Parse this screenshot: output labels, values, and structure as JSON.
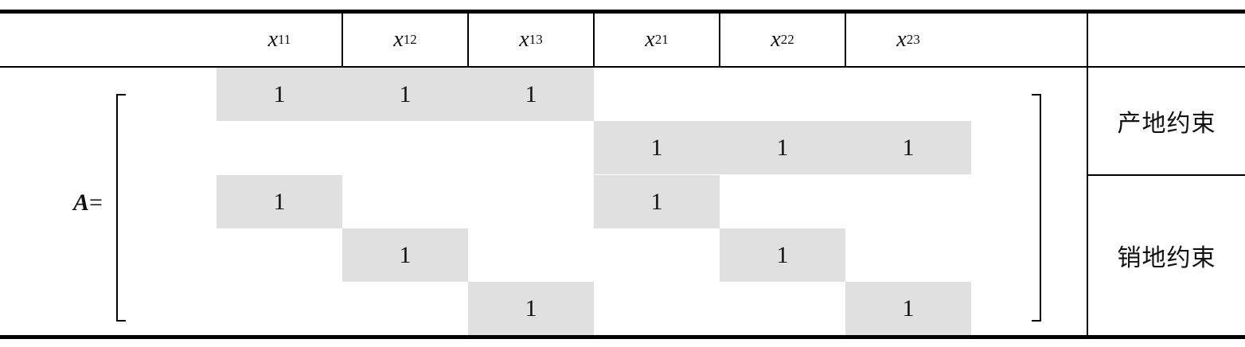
{
  "header": {
    "columns": [
      {
        "var": "x",
        "sub": "11"
      },
      {
        "var": "x",
        "sub": "12"
      },
      {
        "var": "x",
        "sub": "13"
      },
      {
        "var": "x",
        "sub": "21"
      },
      {
        "var": "x",
        "sub": "22"
      },
      {
        "var": "x",
        "sub": "23"
      }
    ]
  },
  "matrix": {
    "label": "A",
    "equals": "=",
    "rows": [
      [
        "1",
        "1",
        "1",
        "",
        "",
        ""
      ],
      [
        "",
        "",
        "",
        "1",
        "1",
        "1"
      ],
      [
        "1",
        "",
        "",
        "1",
        "",
        ""
      ],
      [
        "",
        "1",
        "",
        "",
        "1",
        ""
      ],
      [
        "",
        "",
        "1",
        "",
        "",
        "1"
      ]
    ],
    "highlight_color": "#e0e0e0"
  },
  "groups": [
    {
      "label": "产地约束"
    },
    {
      "label": "销地约束"
    }
  ]
}
